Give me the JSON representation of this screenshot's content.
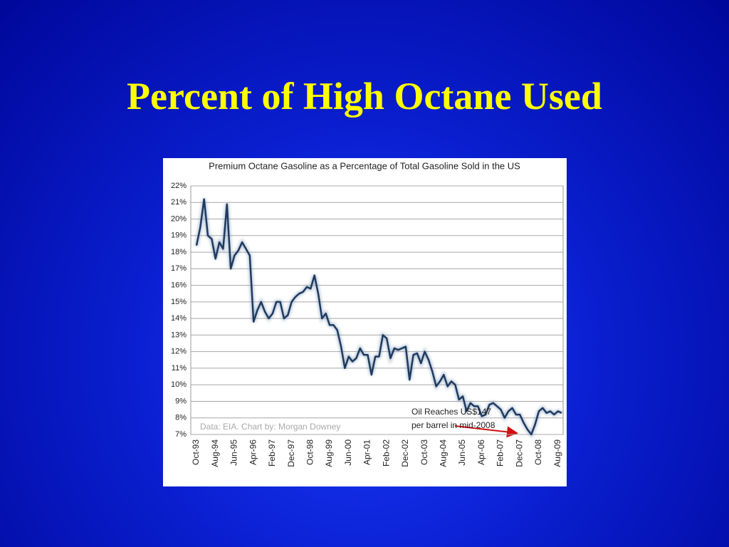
{
  "slide": {
    "title": "Percent of High Octane Used"
  },
  "chart_data": {
    "type": "line",
    "title": "Premium Octane Gasoline as a Percentage of Total Gasoline Sold in the US",
    "categories": [
      "Oct-93",
      null,
      null,
      null,
      null,
      "Aug-94",
      null,
      null,
      null,
      null,
      "Jun-95",
      null,
      null,
      null,
      null,
      "Apr-96",
      null,
      null,
      null,
      null,
      "Feb-97",
      null,
      null,
      null,
      null,
      "Dec-97",
      null,
      null,
      null,
      null,
      "Oct-98",
      null,
      null,
      null,
      null,
      "Aug-99",
      null,
      null,
      null,
      null,
      "Jun-00",
      null,
      null,
      null,
      null,
      "Apr-01",
      null,
      null,
      null,
      null,
      "Feb-02",
      null,
      null,
      null,
      null,
      "Dec-02",
      null,
      null,
      null,
      null,
      "Oct-03",
      null,
      null,
      null,
      null,
      "Aug-04",
      null,
      null,
      null,
      null,
      "Jun-05",
      null,
      null,
      null,
      null,
      "Apr-06",
      null,
      null,
      null,
      null,
      "Feb-07",
      null,
      null,
      null,
      null,
      "Dec-07",
      null,
      null,
      null,
      null,
      "Oct-08",
      null,
      null,
      null,
      null,
      "Aug-09",
      null
    ],
    "series": [
      {
        "color": "#1f3a5f",
        "values": [
          18.4,
          19.5,
          21.2,
          19.0,
          18.8,
          17.6,
          18.6,
          18.2,
          20.9,
          17.0,
          17.8,
          18.1,
          18.6,
          18.2,
          17.8,
          13.8,
          14.5,
          15.0,
          14.4,
          14.0,
          14.3,
          15.0,
          15.0,
          14.0,
          14.2,
          15.0,
          15.3,
          15.5,
          15.6,
          15.9,
          15.8,
          16.6,
          15.5,
          14.0,
          14.3,
          13.6,
          13.6,
          13.3,
          12.3,
          11.0,
          11.7,
          11.4,
          11.6,
          12.2,
          11.8,
          11.8,
          10.6,
          11.7,
          11.7,
          13.0,
          12.8,
          11.6,
          12.2,
          12.1,
          12.2,
          12.3,
          10.3,
          11.8,
          11.9,
          11.3,
          12.0,
          11.5,
          10.8,
          9.9,
          10.2,
          10.6,
          9.9,
          10.2,
          10.0,
          9.1,
          9.3,
          8.4,
          8.9,
          8.7,
          8.7,
          8.1,
          8.2,
          8.8,
          8.9,
          8.7,
          8.5,
          8.0,
          8.4,
          8.6,
          8.2,
          8.2,
          7.7,
          7.3,
          7.0,
          7.6,
          8.4,
          8.6,
          8.3,
          8.4,
          8.2,
          8.4,
          8.3
        ]
      }
    ],
    "ylim": [
      7,
      22
    ],
    "yticks": [
      {
        "value": 7,
        "label": "7%"
      },
      {
        "value": 8,
        "label": "8%"
      },
      {
        "value": 9,
        "label": "9%"
      },
      {
        "value": 10,
        "label": "10%"
      },
      {
        "value": 11,
        "label": "11%"
      },
      {
        "value": 12,
        "label": "12%"
      },
      {
        "value": 13,
        "label": "13%"
      },
      {
        "value": 14,
        "label": "14%"
      },
      {
        "value": 15,
        "label": "15%"
      },
      {
        "value": 16,
        "label": "16%"
      },
      {
        "value": 17,
        "label": "17%"
      },
      {
        "value": 18,
        "label": "18%"
      },
      {
        "value": 19,
        "label": "19%"
      },
      {
        "value": 20,
        "label": "20%"
      },
      {
        "value": 21,
        "label": "21%"
      },
      {
        "value": 22,
        "label": "22%"
      }
    ],
    "grid": true,
    "annotations": [
      "Oil Reaches US$147",
      "per barrel in mid-2008",
      "Data: EIA.  Chart by: Morgan Downey"
    ]
  }
}
